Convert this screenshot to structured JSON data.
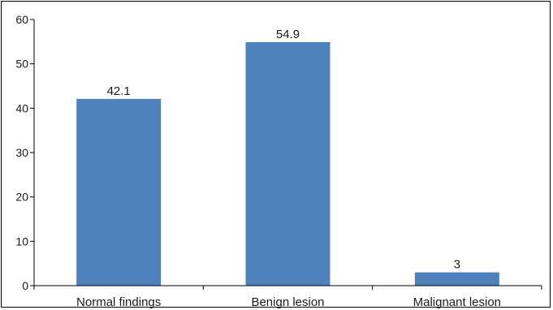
{
  "chart_data": {
    "type": "bar",
    "title": "",
    "xlabel": "",
    "ylabel": "",
    "categories": [
      "Normal findings",
      "Benign lesion",
      "Malignant lesion"
    ],
    "values": [
      42.1,
      54.9,
      3
    ],
    "data_labels": [
      "42.1",
      "54.9",
      "3"
    ],
    "ylim": [
      0,
      60
    ],
    "y_ticks": [
      0,
      10,
      20,
      30,
      40,
      50,
      60
    ],
    "y_tick_labels": [
      "0",
      "10",
      "20",
      "30",
      "40",
      "50",
      "60"
    ],
    "grid": false,
    "legend": "none",
    "bar_color": "#4f81bd"
  }
}
